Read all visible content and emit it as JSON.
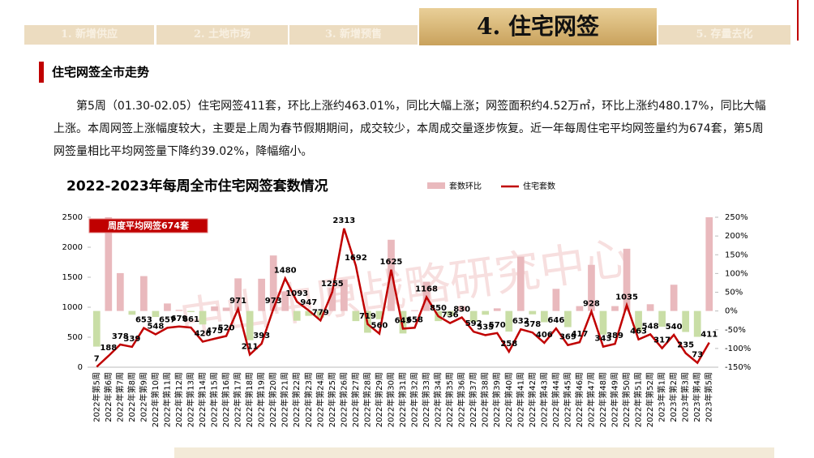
{
  "nav": {
    "tabs": [
      "1. 新增供应",
      "2. 土地市场",
      "3. 新增预售",
      "4. 住宅网签",
      "5. 存量去化"
    ]
  },
  "section": {
    "heading": "住宅网签全市走势",
    "paragraph": "第5周（01.30-02.05）住宅网签411套，环比上涨约463.01%，同比大幅上涨；网签面积约4.52万㎡，环比上涨约480.17%，同比大幅上涨。本周网签上涨幅度较大，主要是上周为春节假期期间，成交较少，本周成交量逐步恢复。近一年每周住宅平均网签量约为674套，第5周网签量相比平均网签量下降约39.02%，降幅缩小。"
  },
  "watermark": "中山中原战略研究中心",
  "chart_data": {
    "type": "bar-line",
    "title": "2022-2023年每周全市住宅网签套数情况",
    "annotation": "周度平均网签674套",
    "categories": [
      "2022年第5周",
      "2022年第6周",
      "2022年第7周",
      "2022年第8周",
      "2022年第9周",
      "2022年第10周",
      "2022年第11周",
      "2022年第12周",
      "2022年第13周",
      "2022年第14周",
      "2022年第15周",
      "2022年第16周",
      "2022年第17周",
      "2022年第18周",
      "2022年第19周",
      "2022年第20周",
      "2022年第21周",
      "2022年第22周",
      "2022年第23周",
      "2022年第24周",
      "2022年第25周",
      "2022年第26周",
      "2022年第27周",
      "2022年第28周",
      "2022年第29周",
      "2022年第30周",
      "2022年第31周",
      "2022年第32周",
      "2022年第33周",
      "2022年第34周",
      "2022年第35周",
      "2022年第36周",
      "2022年第37周",
      "2022年第38周",
      "2022年第39周",
      "2022年第40周",
      "2022年第41周",
      "2022年第42周",
      "2022年第43周",
      "2022年第44周",
      "2022年第45周",
      "2022年第46周",
      "2022年第47周",
      "2022年第48周",
      "2022年第49周",
      "2022年第50周",
      "2022年第51周",
      "2022年第52周",
      "2023年第1周",
      "2023年第2周",
      "2023年第3周",
      "2023年第4周",
      "2023年第5周"
    ],
    "series": [
      {
        "name": "套数环比",
        "type": "bar",
        "axis": "y2",
        "color": "#e9b9bd",
        "negative_color": "#c9dea6",
        "values": [
          -95,
          250,
          101,
          -10,
          93,
          -16,
          20,
          3,
          -3,
          -36,
          12,
          9,
          87,
          -78,
          86,
          148,
          52,
          -26,
          -13,
          -18,
          61,
          84,
          -27,
          -58,
          -22,
          190,
          -60,
          2,
          78,
          -27,
          -13,
          13,
          -29,
          -10,
          7,
          -55,
          145,
          -9,
          -30,
          59,
          -43,
          13,
          123,
          -63,
          13,
          166,
          -55,
          18,
          -42,
          70,
          -56,
          -69,
          250
        ]
      },
      {
        "name": "住宅套数",
        "type": "line",
        "color": "#c00000",
        "values": [
          7,
          188,
          378,
          339,
          653,
          548,
          657,
          679,
          661,
          426,
          475,
          520,
          971,
          211,
          393,
          973,
          1480,
          1093,
          947,
          779,
          1255,
          2313,
          1692,
          719,
          560,
          1625,
          643,
          658,
          1168,
          850,
          736,
          830,
          592,
          535,
          570,
          258,
          632,
          578,
          406,
          646,
          369,
          417,
          928,
          343,
          389,
          1035,
          463,
          548,
          317,
          540,
          235,
          73,
          411
        ]
      }
    ],
    "ylim": [
      0,
      2500
    ],
    "yticks": [
      0,
      500,
      1000,
      1500,
      2000,
      2500
    ],
    "y2lim": [
      -150,
      250
    ],
    "y2ticks": [
      {
        "value": -150,
        "label": "-150%"
      },
      {
        "value": -100,
        "label": "-100%"
      },
      {
        "value": -50,
        "label": "-50%"
      },
      {
        "value": 0,
        "label": "0%"
      },
      {
        "value": 50,
        "label": "50%"
      },
      {
        "value": 100,
        "label": "100%"
      },
      {
        "value": 150,
        "label": "150%"
      },
      {
        "value": 200,
        "label": "200%"
      },
      {
        "value": 250,
        "label": "250%"
      }
    ]
  }
}
